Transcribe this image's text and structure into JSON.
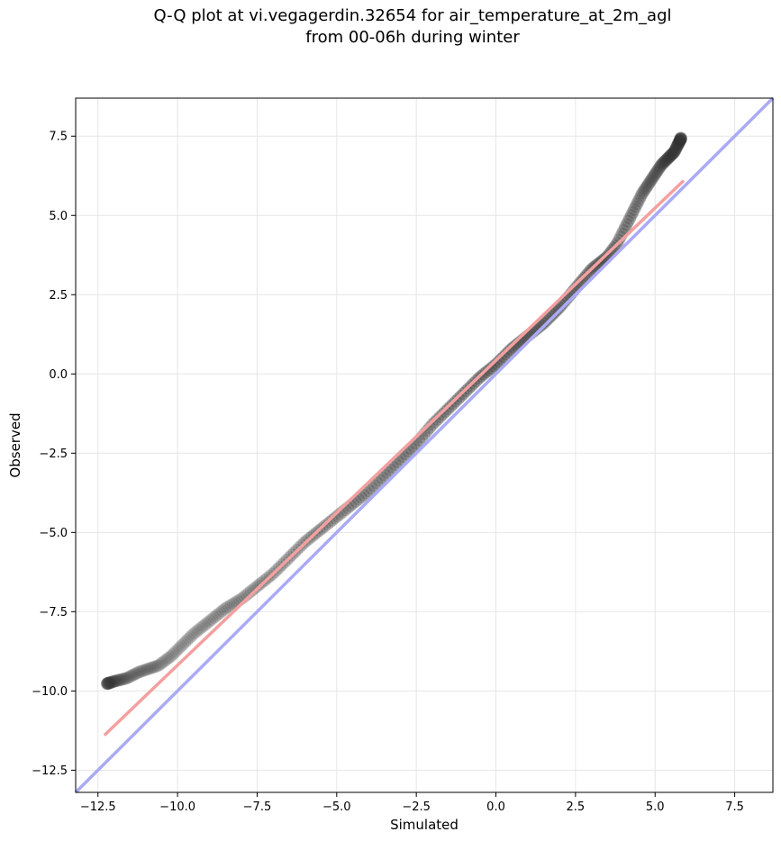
{
  "chart_data": {
    "type": "scatter",
    "title_line1": "Q-Q plot at vi.vegagerdin.32654 for air_temperature_at_2m_agl",
    "title_line2": "from 00-06h during winter",
    "xlabel": "Simulated",
    "ylabel": "Observed",
    "xlim": [
      -13.2,
      8.7
    ],
    "ylim": [
      -13.2,
      8.7
    ],
    "xticks": [
      -12.5,
      -10.0,
      -7.5,
      -5.0,
      -2.5,
      0.0,
      2.5,
      5.0,
      7.5
    ],
    "yticks": [
      -12.5,
      -10.0,
      -7.5,
      -5.0,
      -2.5,
      0.0,
      2.5,
      5.0,
      7.5
    ],
    "xtick_labels": [
      "−12.5",
      "−10.0",
      "−7.5",
      "−5.0",
      "−2.5",
      "0.0",
      "2.5",
      "5.0",
      "7.5"
    ],
    "ytick_labels": [
      "−12.5",
      "−10.0",
      "−7.5",
      "−5.0",
      "−2.5",
      "0.0",
      "2.5",
      "5.0",
      "7.5"
    ],
    "grid": true,
    "colors": {
      "points": "#333333",
      "fit_line": "#f4a0a0",
      "identity_line": "#aaaaf5"
    },
    "identity_line": {
      "x": [
        -13.2,
        8.7
      ],
      "y": [
        -13.2,
        8.7
      ]
    },
    "fit_line": {
      "x": [
        -12.3,
        5.9
      ],
      "y": [
        -11.4,
        6.1
      ]
    },
    "quantile_anchors": {
      "x": [
        -12.3,
        -12.0,
        -11.6,
        -11.2,
        -10.6,
        -10.2,
        -9.8,
        -9.5,
        -9.0,
        -8.5,
        -8.0,
        -7.5,
        -7.0,
        -6.5,
        -6.0,
        -5.5,
        -5.0,
        -4.5,
        -4.0,
        -3.5,
        -3.0,
        -2.5,
        -2.0,
        -1.5,
        -1.0,
        -0.5,
        0.0,
        0.5,
        1.0,
        1.5,
        2.0,
        2.5,
        3.0,
        3.5,
        3.8,
        4.0,
        4.2,
        4.4,
        4.6,
        4.8,
        5.0,
        5.2,
        5.4,
        5.6,
        5.8,
        5.9
      ],
      "y": [
        -9.8,
        -9.7,
        -9.6,
        -9.4,
        -9.2,
        -8.9,
        -8.5,
        -8.2,
        -7.8,
        -7.4,
        -7.1,
        -6.7,
        -6.3,
        -5.8,
        -5.3,
        -4.9,
        -4.5,
        -4.1,
        -3.7,
        -3.2,
        -2.7,
        -2.2,
        -1.6,
        -1.1,
        -0.6,
        -0.1,
        0.3,
        0.8,
        1.2,
        1.6,
        2.1,
        2.7,
        3.3,
        3.7,
        4.1,
        4.5,
        4.9,
        5.3,
        5.7,
        6.0,
        6.3,
        6.6,
        6.8,
        7.0,
        7.4,
        7.8
      ]
    }
  }
}
